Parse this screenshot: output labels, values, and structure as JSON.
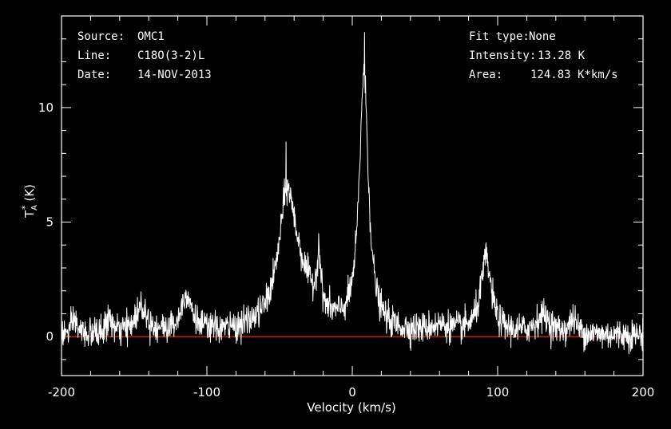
{
  "header": {
    "source_label": "Source:",
    "source_value": "OMC1",
    "line_label": "Line:",
    "line_value": "C18O(3-2)L",
    "date_label": "Date:",
    "date_value": "14-NOV-2013",
    "fit_label": "Fit type:",
    "fit_value": "None",
    "intensity_label": "Intensity:",
    "intensity_value": "13.28 K",
    "area_label": "Area:",
    "area_value": "124.83 K*km/s"
  },
  "colors": {
    "background": "#000000",
    "spectrum": "#ffffff",
    "baseline": "#ff2a1a",
    "frame": "#ffffff"
  },
  "chart_data": {
    "type": "line",
    "xlabel": "Velocity (km/s)",
    "ylabel": "T",
    "ylabel_sub": "A",
    "ylabel_sup": "*",
    "ylabel_unit": "(K)",
    "xlim": [
      -200,
      200
    ],
    "ylim": [
      -1.7,
      14
    ],
    "x_ticks": [
      -200,
      -100,
      0,
      100,
      200
    ],
    "x_tick_labels": [
      "-200",
      "-100",
      "0",
      "100",
      "200"
    ],
    "y_ticks": [
      0,
      5,
      10
    ],
    "y_tick_labels": [
      "0",
      "5",
      "10"
    ],
    "x_minor_step": 20,
    "y_minor_step": 1,
    "grid": false,
    "baseline_value": 0,
    "noise_rms": 0.33,
    "continuum_offset": 0.05,
    "series": [
      {
        "style": "lorentzian_components",
        "components": [
          {
            "center": 8,
            "amplitude": 11.2,
            "width": 3.8
          },
          {
            "center": -45,
            "amplitude": 4.6,
            "width": 6.5
          },
          {
            "center": -38,
            "amplitude": 2.2,
            "width": 14
          },
          {
            "center": -23,
            "amplitude": 2.3,
            "width": 1.5
          },
          {
            "center": 92,
            "amplitude": 3.2,
            "width": 4.5
          },
          {
            "center": -114,
            "amplitude": 1.7,
            "width": 4.5
          },
          {
            "center": -145,
            "amplitude": 1.2,
            "width": 5
          },
          {
            "center": -167,
            "amplitude": 0.7,
            "width": 2
          },
          {
            "center": -191,
            "amplitude": 0.6,
            "width": 2
          },
          {
            "center": 131,
            "amplitude": 0.8,
            "width": 6
          },
          {
            "center": 152,
            "amplitude": 0.6,
            "width": 3
          },
          {
            "center": 60,
            "amplitude": 0.3,
            "width": 10
          }
        ],
        "spikes": [
          {
            "x": -45.5,
            "y": 8.5
          },
          {
            "x": 8.5,
            "y": 13.28
          },
          {
            "x": 92,
            "y": 4.1
          },
          {
            "x": -23,
            "y": 4.5
          }
        ]
      }
    ]
  }
}
